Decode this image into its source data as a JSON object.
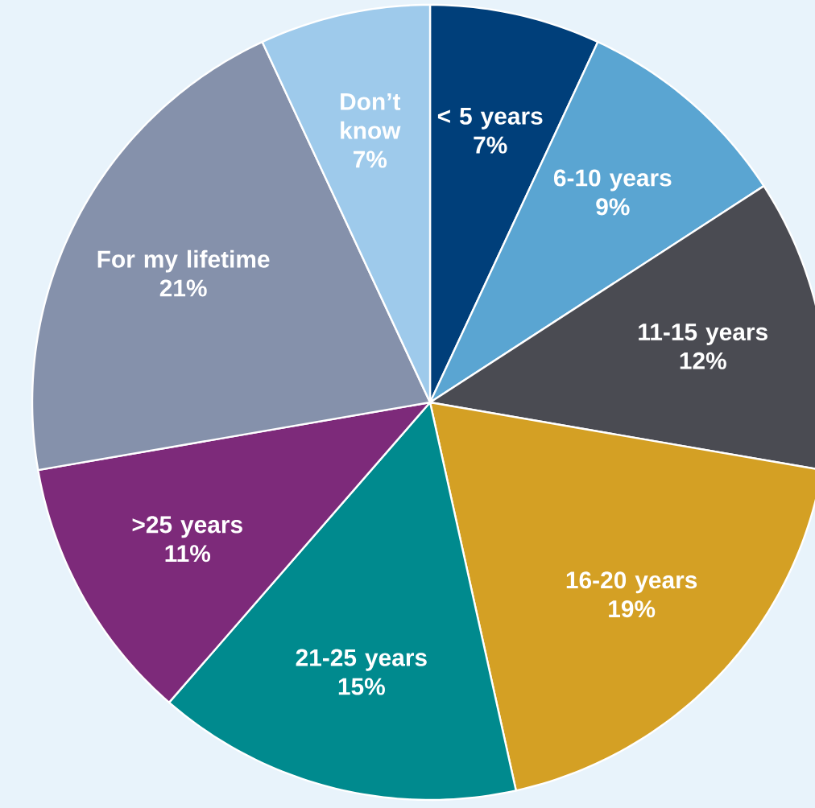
{
  "chart_data": {
    "type": "pie",
    "categories": [
      "< 5 years",
      "6-10 years",
      "11-15 years",
      "16-20 years",
      "21-25 years",
      ">25 years",
      "For my lifetime",
      "Don’t know"
    ],
    "values": [
      7,
      9,
      12,
      19,
      15,
      11,
      21,
      7
    ],
    "value_labels": [
      "7%",
      "9%",
      "12%",
      "19%",
      "15%",
      "11%",
      "21%",
      "7%"
    ],
    "colors": [
      "#003f7a",
      "#5aa5d2",
      "#4a4b52",
      "#d4a024",
      "#008a8e",
      "#7d2a7a",
      "#8591ab",
      "#9ecaeb"
    ]
  }
}
